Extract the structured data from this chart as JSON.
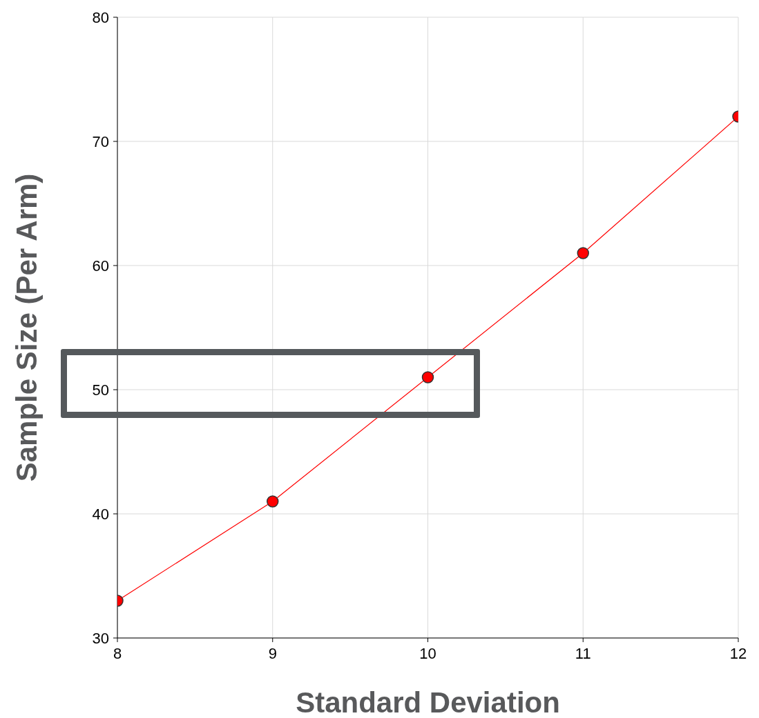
{
  "chart_data": {
    "type": "line",
    "xlabel": "Standard Deviation",
    "ylabel": "Sample Size (Per Arm)",
    "x": [
      8,
      9,
      10,
      11,
      12
    ],
    "series": [
      {
        "color": "#ff0000",
        "values": [
          33,
          41,
          51,
          61,
          72
        ]
      }
    ],
    "xlim": [
      8,
      12
    ],
    "xticks": [
      8,
      9,
      10,
      11,
      12
    ],
    "ylim": [
      30,
      80
    ],
    "yticks": [
      30,
      40,
      50,
      60,
      70,
      80
    ],
    "grid": true,
    "legend": false,
    "marker": "circle",
    "line_style": "solid"
  }
}
